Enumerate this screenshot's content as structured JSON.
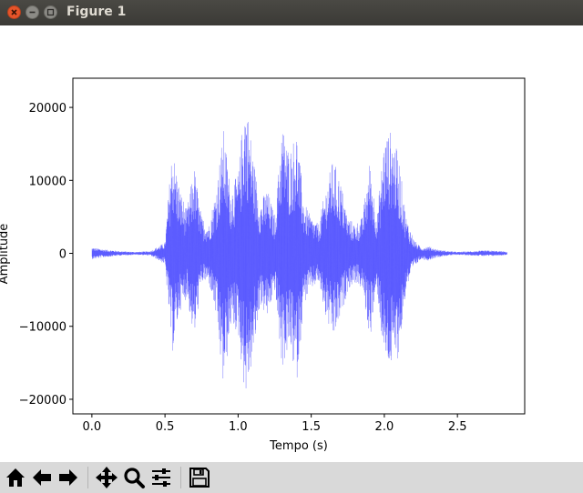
{
  "window": {
    "title": "Figure 1"
  },
  "toolbar": {
    "buttons": [
      {
        "name": "home-button",
        "icon": "home-icon"
      },
      {
        "name": "back-button",
        "icon": "arrow-left-icon"
      },
      {
        "name": "forward-button",
        "icon": "arrow-right-icon"
      },
      {
        "name": "pan-button",
        "icon": "move-icon"
      },
      {
        "name": "zoom-button",
        "icon": "magnifier-icon"
      },
      {
        "name": "configure-subplots-button",
        "icon": "sliders-icon"
      },
      {
        "name": "save-button",
        "icon": "floppy-disk-icon"
      }
    ]
  },
  "chart_data": {
    "type": "line",
    "xlabel": "Tempo (s)",
    "ylabel": "Amplitude",
    "xlim": [
      -0.13,
      2.96
    ],
    "ylim": [
      -22000,
      24000
    ],
    "xticks": [
      0.0,
      0.5,
      1.0,
      1.5,
      2.0,
      2.5
    ],
    "xtick_labels": [
      "0.0",
      "0.5",
      "1.0",
      "1.5",
      "2.0",
      "2.5"
    ],
    "yticks": [
      -20000,
      -10000,
      0,
      10000,
      20000
    ],
    "ytick_labels": [
      "−20000",
      "−10000",
      "0",
      "10000",
      "20000"
    ],
    "line_color": "#0000ff",
    "grid": false,
    "duration_s": 2.84,
    "envelope": {
      "x": [
        0.0,
        0.1,
        0.2,
        0.3,
        0.4,
        0.5,
        0.55,
        0.6,
        0.65,
        0.7,
        0.75,
        0.8,
        0.85,
        0.9,
        0.95,
        1.0,
        1.05,
        1.1,
        1.15,
        1.2,
        1.25,
        1.3,
        1.35,
        1.4,
        1.45,
        1.5,
        1.55,
        1.6,
        1.65,
        1.7,
        1.75,
        1.8,
        1.85,
        1.9,
        1.95,
        2.0,
        2.05,
        2.1,
        2.15,
        2.2,
        2.25,
        2.3,
        2.35,
        2.4,
        2.45,
        2.5,
        2.6,
        2.7,
        2.8,
        2.84
      ],
      "upper": [
        800,
        500,
        300,
        200,
        300,
        1500,
        15000,
        9000,
        6000,
        12000,
        5000,
        4000,
        9000,
        17000,
        9000,
        11000,
        22000,
        14000,
        7000,
        9000,
        5000,
        18000,
        14000,
        17000,
        7000,
        5000,
        4000,
        9000,
        13000,
        10000,
        5000,
        4000,
        5000,
        13000,
        5000,
        16000,
        17000,
        13000,
        5000,
        2000,
        800,
        1000,
        600,
        400,
        300,
        200,
        300,
        400,
        300,
        200
      ],
      "lower": [
        -800,
        -500,
        -300,
        -200,
        -300,
        -1500,
        -14000,
        -8000,
        -6000,
        -12000,
        -4000,
        -4000,
        -9000,
        -19000,
        -10000,
        -11000,
        -20000,
        -15000,
        -7000,
        -9000,
        -5000,
        -16000,
        -13000,
        -18000,
        -7000,
        -5000,
        -4000,
        -9000,
        -12000,
        -9000,
        -5000,
        -4000,
        -5000,
        -12000,
        -5000,
        -15000,
        -16000,
        -14000,
        -5000,
        -2000,
        -800,
        -1000,
        -600,
        -400,
        -300,
        -200,
        -300,
        -400,
        -300,
        -200
      ]
    }
  }
}
